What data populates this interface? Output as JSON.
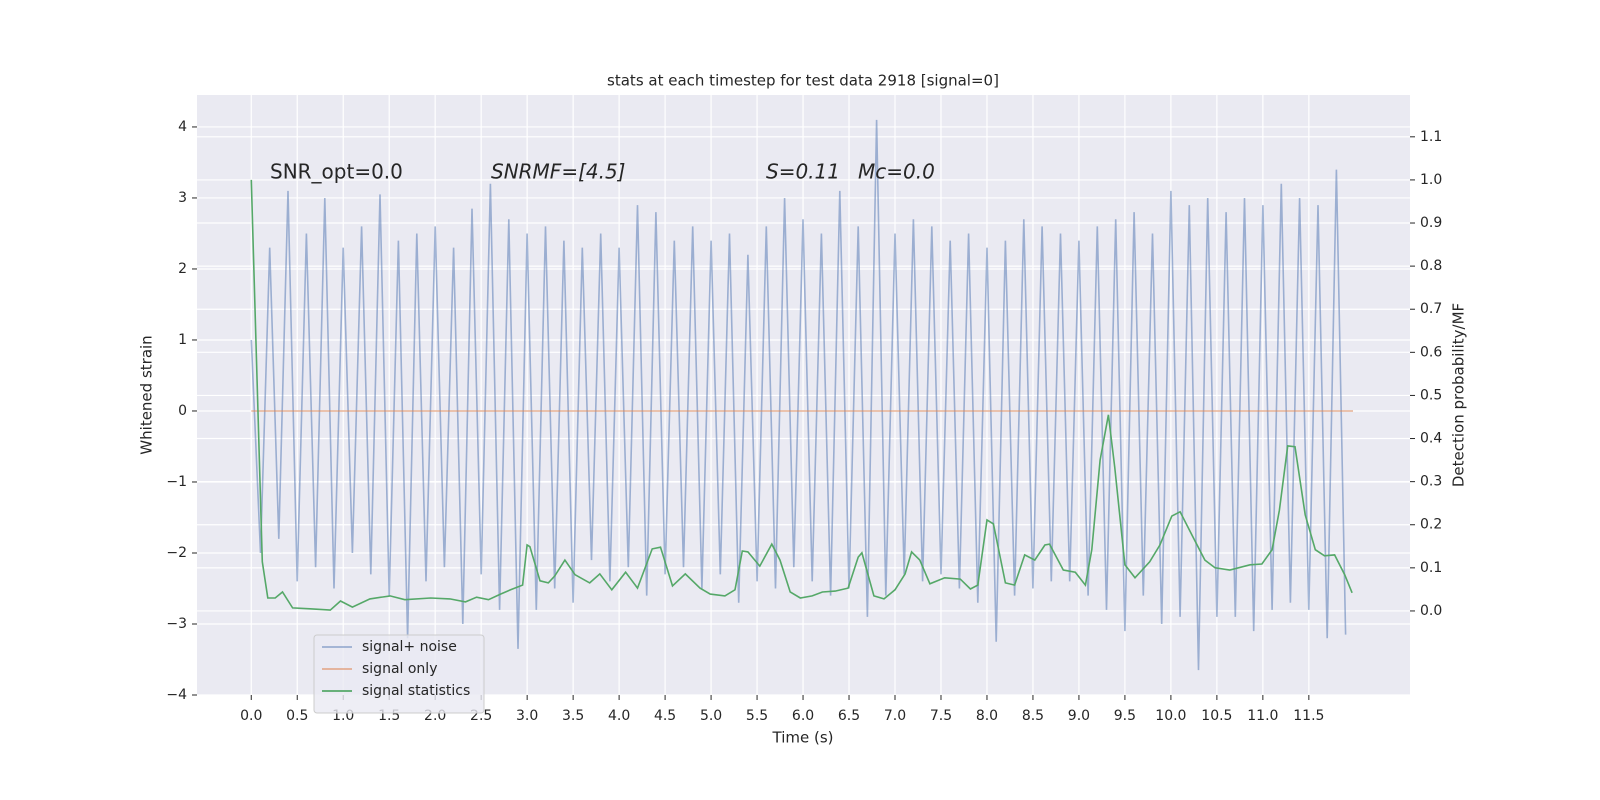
{
  "chart_data": {
    "type": "line",
    "title": "stats at each timestep for test data 2918 [signal=0]",
    "xlabel": "Time (s)",
    "ylabel": "Whitened strain",
    "y2label": "Detection probability/MF",
    "annotations": [
      "SNR_opt=0.0",
      "SNRMF=[4.5]",
      "S=0.11",
      "Mc=0.0"
    ],
    "grid": true,
    "legend": "lower left",
    "xlim": [
      -0.59,
      12.6
    ],
    "ylim": [
      -4.0,
      4.45
    ],
    "y2lim": [
      -0.195,
      1.197
    ],
    "xticks": [
      {
        "value": 0,
        "label": "0.0"
      },
      0.5,
      {
        "value": 1,
        "label": "1.0"
      },
      1.5,
      {
        "value": 2,
        "label": "2.0"
      },
      2.5,
      {
        "value": 3,
        "label": "3.0"
      },
      3.5,
      {
        "value": 4,
        "label": "4.0"
      },
      4.5,
      {
        "value": 5,
        "label": "5.0"
      },
      5.5,
      {
        "value": 6,
        "label": "6.0"
      },
      6.5,
      {
        "value": 7,
        "label": "7.0"
      },
      7.5,
      {
        "value": 8,
        "label": "8.0"
      },
      8.5,
      {
        "value": 9,
        "label": "9.0"
      },
      9.5,
      {
        "value": 10,
        "label": "10.0"
      },
      10.5,
      {
        "value": 11,
        "label": "11.0"
      },
      11.5
    ],
    "yticks": [
      {
        "value": -4,
        "label": "−4"
      },
      {
        "value": -3,
        "label": "−3"
      },
      {
        "value": -2,
        "label": "−2"
      },
      {
        "value": -1,
        "label": "−1"
      },
      0,
      1,
      2,
      3,
      4
    ],
    "y2ticks": [
      {
        "value": 0,
        "label": "0.0"
      },
      0.1,
      0.2,
      0.3,
      0.4,
      0.5,
      0.6,
      0.7,
      0.8,
      0.9,
      {
        "value": 1,
        "label": "1.0"
      },
      1.1
    ],
    "series": [
      {
        "name": "signal+ noise",
        "color": "#4c72b0",
        "opacity": 0.5,
        "x": [
          0,
          0.1,
          0.2,
          0.3,
          0.4,
          0.5,
          0.6,
          0.7,
          0.8,
          0.9,
          1,
          1.1,
          1.2,
          1.3,
          1.4,
          1.5,
          1.6,
          1.7,
          1.8,
          1.9,
          2,
          2.1,
          2.2,
          2.3,
          2.4,
          2.5,
          2.6,
          2.7,
          2.8,
          2.9,
          3,
          3.1,
          3.2,
          3.3,
          3.4,
          3.5,
          3.6,
          3.7,
          3.8,
          3.9,
          4,
          4.1,
          4.2,
          4.3,
          4.4,
          4.5,
          4.6,
          4.7,
          4.8,
          4.9,
          5,
          5.1,
          5.2,
          5.3,
          5.4,
          5.5,
          5.6,
          5.7,
          5.8,
          5.9,
          6,
          6.1,
          6.2,
          6.3,
          6.4,
          6.5,
          6.6,
          6.7,
          6.8,
          6.9,
          7,
          7.1,
          7.2,
          7.3,
          7.4,
          7.5,
          7.6,
          7.7,
          7.8,
          7.9,
          8,
          8.1,
          8.2,
          8.3,
          8.4,
          8.5,
          8.6,
          8.7,
          8.8,
          8.9,
          9,
          9.1,
          9.2,
          9.3,
          9.4,
          9.5,
          9.6,
          9.7,
          9.8,
          9.9,
          10,
          10.1,
          10.2,
          10.3,
          10.4,
          10.5,
          10.6,
          10.7,
          10.8,
          10.9,
          11,
          11.1,
          11.2,
          11.3,
          11.4,
          11.5,
          11.6,
          11.7,
          11.8,
          11.9
        ],
        "values": [
          1.0,
          -2.0,
          2.3,
          -1.8,
          3.1,
          -2.4,
          2.5,
          -2.2,
          3.0,
          -2.5,
          2.3,
          -2.0,
          2.6,
          -2.3,
          3.05,
          -2.6,
          2.4,
          -3.2,
          2.5,
          -2.4,
          2.6,
          -2.2,
          2.3,
          -3.0,
          2.85,
          -2.3,
          3.2,
          -2.8,
          2.7,
          -3.35,
          2.5,
          -2.8,
          2.6,
          -2.5,
          2.4,
          -2.7,
          2.3,
          -2.1,
          2.5,
          -2.4,
          2.3,
          -2.2,
          2.9,
          -2.6,
          2.8,
          -2.3,
          2.4,
          -2.2,
          2.6,
          -2.5,
          2.4,
          -2.3,
          2.5,
          -2.7,
          2.2,
          -2.4,
          2.6,
          -2.5,
          3.0,
          -2.2,
          2.7,
          -2.4,
          2.5,
          -2.6,
          3.1,
          -2.5,
          2.6,
          -2.9,
          4.1,
          -2.6,
          2.5,
          -2.3,
          2.7,
          -2.4,
          2.6,
          -2.3,
          2.4,
          -2.5,
          2.5,
          -2.7,
          2.3,
          -3.25,
          2.4,
          -2.6,
          2.7,
          -2.5,
          2.6,
          -2.4,
          2.5,
          -2.4,
          2.4,
          -2.6,
          2.6,
          -2.8,
          2.7,
          -3.1,
          2.8,
          -2.6,
          2.5,
          -3.0,
          3.1,
          -2.9,
          2.9,
          -3.65,
          3.0,
          -2.9,
          2.8,
          -2.9,
          3.0,
          -3.1,
          2.9,
          -2.8,
          3.2,
          -2.7,
          3.0,
          -2.8,
          2.9,
          -3.2,
          3.4,
          -3.15
        ]
      },
      {
        "name": "signal only",
        "color": "#dd8452",
        "opacity": 0.6,
        "x": [
          0,
          11.98
        ],
        "values": [
          0,
          0
        ]
      },
      {
        "name": "signal statistics",
        "color": "#55a868",
        "opacity": 1,
        "axis": "y2",
        "x": [
          0,
          0.12,
          0.18,
          0.26,
          0.34,
          0.45,
          0.64,
          0.86,
          0.97,
          1.1,
          1.29,
          1.51,
          1.67,
          1.95,
          2.16,
          2.33,
          2.45,
          2.58,
          2.71,
          2.82,
          2.95,
          3.0,
          3.03,
          3.14,
          3.23,
          3.3,
          3.41,
          3.52,
          3.68,
          3.79,
          3.92,
          4.07,
          4.2,
          4.36,
          4.45,
          4.58,
          4.72,
          4.88,
          4.99,
          5.15,
          5.26,
          5.34,
          5.4,
          5.53,
          5.66,
          5.75,
          5.86,
          5.97,
          6.1,
          6.21,
          6.35,
          6.49,
          6.6,
          6.64,
          6.77,
          6.88,
          7.0,
          7.11,
          7.18,
          7.27,
          7.38,
          7.54,
          7.71,
          7.82,
          7.9,
          8.0,
          8.07,
          8.2,
          8.3,
          8.41,
          8.52,
          8.63,
          8.68,
          8.83,
          8.96,
          9.07,
          9.14,
          9.23,
          9.32,
          9.39,
          9.5,
          9.61,
          9.77,
          9.88,
          10.01,
          10.1,
          10.23,
          10.37,
          10.48,
          10.64,
          10.86,
          10.99,
          11.1,
          11.18,
          11.27,
          11.35,
          11.46,
          11.57,
          11.67,
          11.78,
          11.89,
          11.97
        ],
        "values": [
          1.0,
          0.114,
          0.03,
          0.03,
          0.044,
          0.007,
          0.005,
          0.002,
          0.023,
          0.009,
          0.028,
          0.035,
          0.026,
          0.03,
          0.028,
          0.021,
          0.032,
          0.026,
          0.039,
          0.049,
          0.06,
          0.153,
          0.149,
          0.07,
          0.065,
          0.081,
          0.118,
          0.084,
          0.065,
          0.086,
          0.049,
          0.09,
          0.053,
          0.144,
          0.148,
          0.058,
          0.086,
          0.053,
          0.039,
          0.035,
          0.049,
          0.139,
          0.137,
          0.104,
          0.155,
          0.118,
          0.044,
          0.03,
          0.035,
          0.044,
          0.046,
          0.053,
          0.125,
          0.135,
          0.035,
          0.028,
          0.049,
          0.086,
          0.137,
          0.118,
          0.063,
          0.077,
          0.074,
          0.051,
          0.06,
          0.211,
          0.202,
          0.065,
          0.06,
          0.13,
          0.118,
          0.153,
          0.155,
          0.095,
          0.09,
          0.06,
          0.142,
          0.35,
          0.455,
          0.332,
          0.107,
          0.077,
          0.114,
          0.153,
          0.22,
          0.23,
          0.176,
          0.118,
          0.1,
          0.095,
          0.107,
          0.109,
          0.142,
          0.234,
          0.383,
          0.381,
          0.223,
          0.142,
          0.128,
          0.13,
          0.084,
          0.042
        ]
      }
    ]
  }
}
